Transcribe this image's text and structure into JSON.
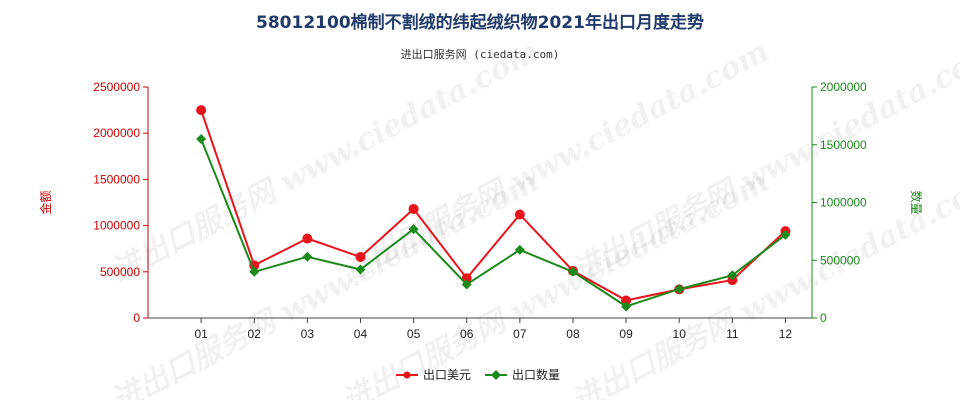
{
  "colors": {
    "series1": "#e8141b",
    "series2": "#1a8a1a",
    "left_axis": "#cc0000",
    "right_axis": "#1a8a1a",
    "title": "#1f3a6b"
  },
  "chart_data": {
    "type": "line",
    "title": "58012100棉制不割绒的纬起绒织物2021年出口月度走势",
    "subtitle": "进出口服务网 (ciedata.com)",
    "watermark": "进出口服务网 www.ciedata.com",
    "categories": [
      "01",
      "02",
      "03",
      "04",
      "05",
      "06",
      "07",
      "08",
      "09",
      "10",
      "11",
      "12"
    ],
    "y_left": {
      "label": "金额",
      "ylim": [
        0,
        2500000
      ],
      "ticks": [
        "0",
        "500000",
        "1000000",
        "1500000",
        "2000000",
        "2500000"
      ]
    },
    "y_right": {
      "label": "数量",
      "ylim": [
        0,
        2000000
      ],
      "ticks": [
        "0",
        "500000",
        "1000000",
        "1500000",
        "2000000"
      ]
    },
    "series": [
      {
        "name": "出口美元",
        "axis": "left",
        "marker": "circle",
        "values": [
          2250000,
          570000,
          860000,
          660000,
          1180000,
          430000,
          1120000,
          510000,
          190000,
          310000,
          410000,
          940000
        ]
      },
      {
        "name": "出口数量",
        "axis": "right",
        "marker": "diamond",
        "values": [
          1550000,
          400000,
          530000,
          420000,
          770000,
          290000,
          590000,
          400000,
          100000,
          250000,
          370000,
          720000
        ]
      }
    ],
    "legend": "bottom-center",
    "grid": false
  }
}
